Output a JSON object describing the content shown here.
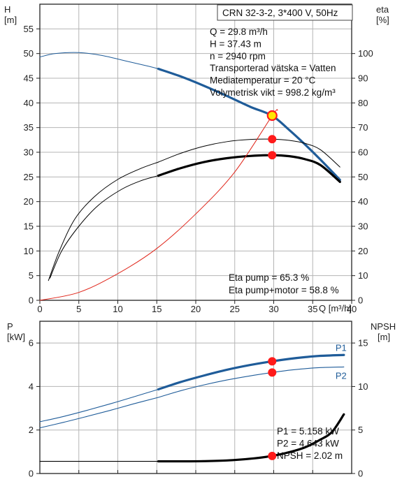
{
  "info": {
    "model": "CRN 32-3-2, 3*400 V, 50Hz",
    "lines": [
      "Q = 29.8 m³/h",
      "H = 37.43 m",
      "n = 2940 rpm",
      "Transporterad vätska = Vatten",
      "Mediatemperatur = 20 °C",
      "Volymetrisk vikt = 998.2 kg/m³"
    ],
    "eta_lines": [
      "Eta pump = 65.3 %",
      "Eta pump+motor = 58.8 %"
    ],
    "power_lines": [
      "P1 = 5.158 kW",
      "P2 = 4.643 kW",
      "NPSH = 2.02 m"
    ]
  },
  "colors": {
    "head": "#1f5c99",
    "system": "#e0261b",
    "eta": "#000000",
    "power": "#1f5c99",
    "npsh": "#000000",
    "point": "#ff1a1a",
    "highlight": "#ffe600"
  },
  "chart_data": [
    {
      "type": "line",
      "xlabel": "Q [m³/h]",
      "ylabel": "H [m]",
      "y2label": "eta [%]",
      "xlim": [
        0,
        40
      ],
      "ylim": [
        0,
        60
      ],
      "y2lim": [
        0,
        120
      ],
      "xticks": [
        "0",
        "5",
        "10",
        "15",
        "20",
        "25",
        "30",
        "35",
        "40"
      ],
      "yticks": [
        "0",
        "5",
        "10",
        "15",
        "20",
        "25",
        "30",
        "35",
        "40",
        "45",
        "50",
        "55"
      ],
      "y2ticks": [
        "0",
        "10",
        "20",
        "30",
        "40",
        "50",
        "60",
        "70",
        "80",
        "90",
        "100"
      ],
      "grid": true,
      "series": [
        {
          "key": "head_thin",
          "axis": "left",
          "style": "thin",
          "color": "#1f5c99",
          "x": [
            0,
            2,
            5,
            8,
            11,
            14,
            15.2
          ],
          "y": [
            49.3,
            50.0,
            50.2,
            49.6,
            48.5,
            47.4,
            46.9
          ]
        },
        {
          "key": "head_thick",
          "axis": "left",
          "style": "thick",
          "color": "#1f5c99",
          "x": [
            15.2,
            18,
            21,
            24,
            27,
            29.8,
            32,
            34,
            36,
            38.5
          ],
          "y": [
            46.9,
            45.4,
            43.5,
            41.4,
            39.2,
            37.4,
            34.5,
            31.6,
            28.5,
            24.4
          ]
        },
        {
          "key": "eta_pump_thin",
          "axis": "right",
          "style": "thin",
          "color": "#000000",
          "x": [
            1.1,
            2.5,
            4.5,
            7,
            10,
            13,
            15.2
          ],
          "y": [
            8,
            20,
            33,
            42,
            49,
            53.5,
            56
          ]
        },
        {
          "key": "eta_pump_thick",
          "axis": "right",
          "style": "thin",
          "color": "#000000",
          "x": [
            15.2,
            18,
            21,
            24,
            27,
            29.8,
            32,
            34,
            36,
            38.5
          ],
          "y": [
            56,
            59.5,
            62.4,
            64.3,
            65.2,
            65.3,
            64.8,
            63.6,
            61,
            54
          ]
        },
        {
          "key": "eta_total_thin",
          "axis": "right",
          "style": "thin",
          "color": "#000000",
          "x": [
            1.3,
            2.8,
            5,
            7.5,
            10.5,
            13,
            15.2
          ],
          "y": [
            9,
            20,
            30,
            38.5,
            45,
            48.5,
            50.5
          ]
        },
        {
          "key": "eta_total_thick",
          "axis": "right",
          "style": "thick",
          "color": "#000000",
          "x": [
            15.2,
            18,
            21,
            24,
            27,
            29.8,
            32,
            34,
            36,
            38.5
          ],
          "y": [
            50.5,
            53.5,
            56,
            57.6,
            58.5,
            58.8,
            58.4,
            57.2,
            54.8,
            48
          ]
        },
        {
          "key": "system",
          "axis": "left",
          "style": "thin",
          "color": "#e0261b",
          "x": [
            0,
            5,
            10,
            15,
            20,
            25,
            29.8,
            30.5
          ],
          "y": [
            0,
            1.6,
            5.4,
            10.5,
            17.5,
            26,
            37.4,
            38.5
          ]
        }
      ],
      "points": [
        {
          "x": 29.8,
          "y": 37.43,
          "axis": "left",
          "highlight": true
        },
        {
          "x": 29.8,
          "y": 65.3,
          "axis": "right"
        },
        {
          "x": 29.8,
          "y": 58.8,
          "axis": "right"
        }
      ]
    },
    {
      "type": "line",
      "ylabel": "P [kW]",
      "y2label": "NPSH [m]",
      "xlim": [
        0,
        40
      ],
      "ylim": [
        0,
        7
      ],
      "y2lim": [
        0,
        17.5
      ],
      "yticks": [
        "0",
        "2",
        "4",
        "6"
      ],
      "y2ticks": [
        "0",
        "5",
        "10",
        "15"
      ],
      "grid": true,
      "series": [
        {
          "key": "p1_thin",
          "name": "P1",
          "axis": "left",
          "style": "thin",
          "color": "#1f5c99",
          "x": [
            0,
            3,
            6,
            9,
            12,
            15.2
          ],
          "y": [
            2.38,
            2.62,
            2.9,
            3.2,
            3.52,
            3.87
          ]
        },
        {
          "key": "p1_thick",
          "name": "P1",
          "axis": "left",
          "style": "thick",
          "color": "#1f5c99",
          "x": [
            15.2,
            18,
            21,
            24,
            27,
            29.8,
            32,
            34,
            36,
            39
          ],
          "y": [
            3.87,
            4.2,
            4.5,
            4.77,
            4.99,
            5.158,
            5.27,
            5.35,
            5.41,
            5.45
          ]
        },
        {
          "key": "p2_thin",
          "name": "P2",
          "axis": "left",
          "style": "thin",
          "color": "#1f5c99",
          "x": [
            0,
            3,
            6,
            9,
            12,
            15.2
          ],
          "y": [
            2.1,
            2.35,
            2.62,
            2.9,
            3.2,
            3.5
          ]
        },
        {
          "key": "p2_thick",
          "name": "P2",
          "axis": "left",
          "style": "thin",
          "color": "#1f5c99",
          "x": [
            15.2,
            18,
            21,
            24,
            27,
            29.8,
            32,
            34,
            36,
            39
          ],
          "y": [
            3.5,
            3.8,
            4.07,
            4.3,
            4.49,
            4.643,
            4.75,
            4.82,
            4.87,
            4.9
          ]
        },
        {
          "key": "npsh_thin",
          "axis": "right",
          "style": "thin",
          "color": "#000000",
          "x": [
            0,
            15.2
          ],
          "y": [
            1.4,
            1.4
          ]
        },
        {
          "key": "npsh_thick",
          "axis": "right",
          "style": "thick",
          "color": "#000000",
          "x": [
            15.2,
            18,
            21,
            24,
            27,
            29.8,
            32,
            34,
            36,
            37.5,
            39
          ],
          "y": [
            1.4,
            1.4,
            1.42,
            1.5,
            1.7,
            2.02,
            2.45,
            3.0,
            3.9,
            4.8,
            6.8
          ]
        }
      ],
      "labels": [
        "P1",
        "P2"
      ],
      "points": [
        {
          "x": 29.8,
          "y": 5.158,
          "axis": "left"
        },
        {
          "x": 29.8,
          "y": 4.643,
          "axis": "left"
        },
        {
          "x": 29.8,
          "y": 2.02,
          "axis": "right"
        }
      ]
    }
  ]
}
